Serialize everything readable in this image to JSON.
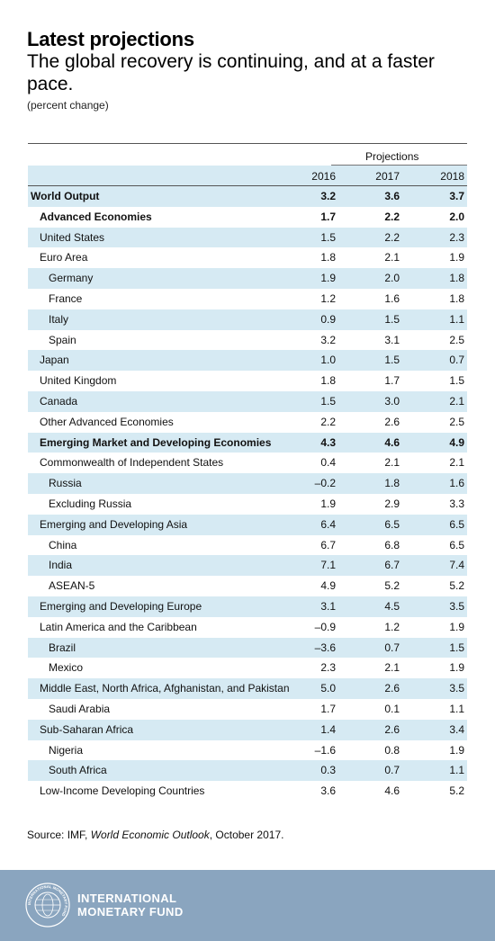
{
  "title": "Latest projections",
  "subtitle": "The global recovery is continuing, and at a faster pace.",
  "unit": "(percent change)",
  "chart_data": {
    "type": "table",
    "group_header": "Projections",
    "columns": [
      "2016",
      "2017",
      "2018"
    ],
    "rows": [
      {
        "name": "World Output",
        "level": 0,
        "bold": true,
        "values": [
          "3.2",
          "3.6",
          "3.7"
        ]
      },
      {
        "name": "Advanced Economies",
        "level": 1,
        "bold": true,
        "values": [
          "1.7",
          "2.2",
          "2.0"
        ]
      },
      {
        "name": "United States",
        "level": 1,
        "bold": false,
        "values": [
          "1.5",
          "2.2",
          "2.3"
        ]
      },
      {
        "name": "Euro Area",
        "level": 1,
        "bold": false,
        "values": [
          "1.8",
          "2.1",
          "1.9"
        ]
      },
      {
        "name": "Germany",
        "level": 2,
        "bold": false,
        "values": [
          "1.9",
          "2.0",
          "1.8"
        ]
      },
      {
        "name": "France",
        "level": 2,
        "bold": false,
        "values": [
          "1.2",
          "1.6",
          "1.8"
        ]
      },
      {
        "name": "Italy",
        "level": 2,
        "bold": false,
        "values": [
          "0.9",
          "1.5",
          "1.1"
        ]
      },
      {
        "name": "Spain",
        "level": 2,
        "bold": false,
        "values": [
          "3.2",
          "3.1",
          "2.5"
        ]
      },
      {
        "name": "Japan",
        "level": 1,
        "bold": false,
        "values": [
          "1.0",
          "1.5",
          "0.7"
        ]
      },
      {
        "name": "United Kingdom",
        "level": 1,
        "bold": false,
        "values": [
          "1.8",
          "1.7",
          "1.5"
        ]
      },
      {
        "name": "Canada",
        "level": 1,
        "bold": false,
        "values": [
          "1.5",
          "3.0",
          "2.1"
        ]
      },
      {
        "name": "Other Advanced Economies",
        "level": 1,
        "bold": false,
        "values": [
          "2.2",
          "2.6",
          "2.5"
        ]
      },
      {
        "name": "Emerging Market and Developing Economies",
        "level": 1,
        "bold": true,
        "values": [
          "4.3",
          "4.6",
          "4.9"
        ]
      },
      {
        "name": "Commonwealth of Independent States",
        "level": 1,
        "bold": false,
        "values": [
          "0.4",
          "2.1",
          "2.1"
        ]
      },
      {
        "name": "Russia",
        "level": 2,
        "bold": false,
        "values": [
          "–0.2",
          "1.8",
          "1.6"
        ]
      },
      {
        "name": "Excluding Russia",
        "level": 2,
        "bold": false,
        "values": [
          "1.9",
          "2.9",
          "3.3"
        ]
      },
      {
        "name": "Emerging and Developing Asia",
        "level": 1,
        "bold": false,
        "values": [
          "6.4",
          "6.5",
          "6.5"
        ]
      },
      {
        "name": "China",
        "level": 2,
        "bold": false,
        "values": [
          "6.7",
          "6.8",
          "6.5"
        ]
      },
      {
        "name": "India",
        "level": 2,
        "bold": false,
        "values": [
          "7.1",
          "6.7",
          "7.4"
        ]
      },
      {
        "name": "ASEAN-5",
        "level": 2,
        "bold": false,
        "values": [
          "4.9",
          "5.2",
          "5.2"
        ]
      },
      {
        "name": "Emerging and Developing Europe",
        "level": 1,
        "bold": false,
        "values": [
          "3.1",
          "4.5",
          "3.5"
        ]
      },
      {
        "name": "Latin America and the Caribbean",
        "level": 1,
        "bold": false,
        "values": [
          "–0.9",
          "1.2",
          "1.9"
        ]
      },
      {
        "name": "Brazil",
        "level": 2,
        "bold": false,
        "values": [
          "–3.6",
          "0.7",
          "1.5"
        ]
      },
      {
        "name": "Mexico",
        "level": 2,
        "bold": false,
        "values": [
          "2.3",
          "2.1",
          "1.9"
        ]
      },
      {
        "name": "Middle East, North Africa, Afghanistan, and Pakistan",
        "level": 1,
        "bold": false,
        "values": [
          "5.0",
          "2.6",
          "3.5"
        ]
      },
      {
        "name": "Saudi Arabia",
        "level": 2,
        "bold": false,
        "values": [
          "1.7",
          "0.1",
          "1.1"
        ]
      },
      {
        "name": "Sub-Saharan Africa",
        "level": 1,
        "bold": false,
        "values": [
          "1.4",
          "2.6",
          "3.4"
        ]
      },
      {
        "name": "Nigeria",
        "level": 2,
        "bold": false,
        "values": [
          "–1.6",
          "0.8",
          "1.9"
        ]
      },
      {
        "name": "South Africa",
        "level": 2,
        "bold": false,
        "values": [
          "0.3",
          "0.7",
          "1.1"
        ]
      },
      {
        "name": "Low-Income Developing Countries",
        "level": 1,
        "bold": false,
        "values": [
          "3.6",
          "4.6",
          "5.2"
        ]
      }
    ]
  },
  "source": {
    "prefix": "Source: IMF, ",
    "publication": "World Economic Outlook",
    "suffix": ", October 2017."
  },
  "footer": {
    "org_line1": "INTERNATIONAL",
    "org_line2": "MONETARY FUND",
    "seal_icon": "imf-seal-icon",
    "seal_text": "INTERNATIONAL MONETARY FUND",
    "background": "#8aa5bf"
  },
  "colors": {
    "row_shade": "#d6eaf3",
    "rule": "#555555"
  }
}
